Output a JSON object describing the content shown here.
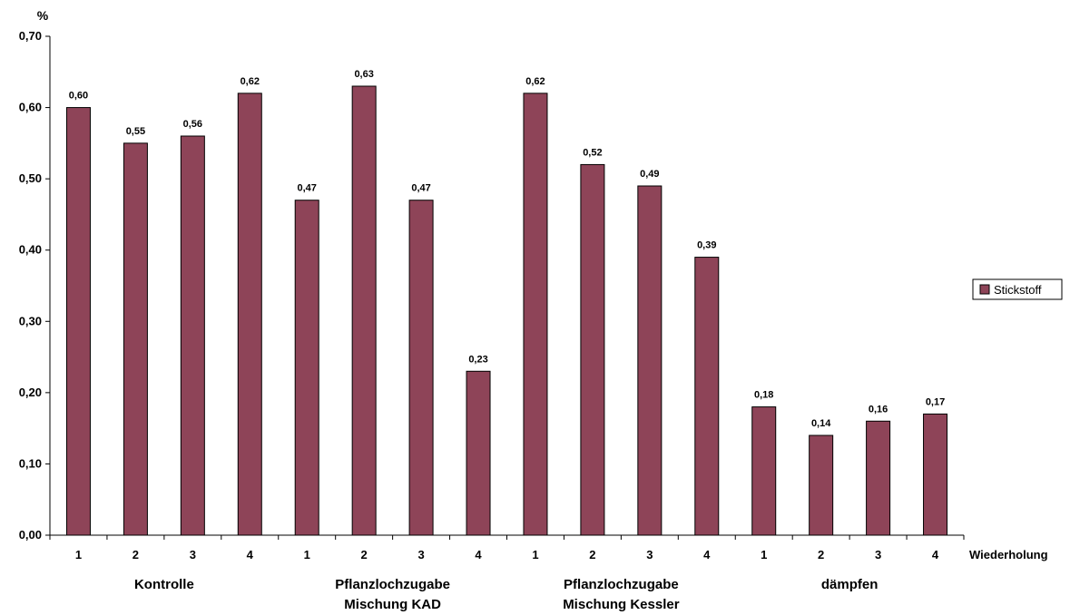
{
  "chart_data": {
    "type": "bar",
    "ylabel": "%",
    "xlabel": "Wiederholung",
    "ylim": [
      0,
      0.7
    ],
    "yticks": [
      "0,00",
      "0,10",
      "0,20",
      "0,30",
      "0,40",
      "0,50",
      "0,60",
      "0,70"
    ],
    "categories": [
      "1",
      "2",
      "3",
      "4",
      "1",
      "2",
      "3",
      "4",
      "1",
      "2",
      "3",
      "4",
      "1",
      "2",
      "3",
      "4"
    ],
    "groups": [
      {
        "lines": [
          "Kontrolle"
        ]
      },
      {
        "lines": [
          "Pflanzlochzugabe",
          "Mischung KAD"
        ]
      },
      {
        "lines": [
          "Pflanzlochzugabe",
          "Mischung Kessler"
        ]
      },
      {
        "lines": [
          "dämpfen"
        ]
      }
    ],
    "series": [
      {
        "name": "Stickstoff",
        "color": "#8e4458",
        "values": [
          0.6,
          0.55,
          0.56,
          0.62,
          0.47,
          0.63,
          0.47,
          0.23,
          0.62,
          0.52,
          0.49,
          0.39,
          0.18,
          0.14,
          0.16,
          0.17
        ],
        "value_labels": [
          "0,60",
          "0,55",
          "0,56",
          "0,62",
          "0,47",
          "0,63",
          "0,47",
          "0,23",
          "0,62",
          "0,52",
          "0,49",
          "0,39",
          "0,18",
          "0,14",
          "0,16",
          "0,17"
        ]
      }
    ],
    "legend": "right",
    "grid": false
  }
}
